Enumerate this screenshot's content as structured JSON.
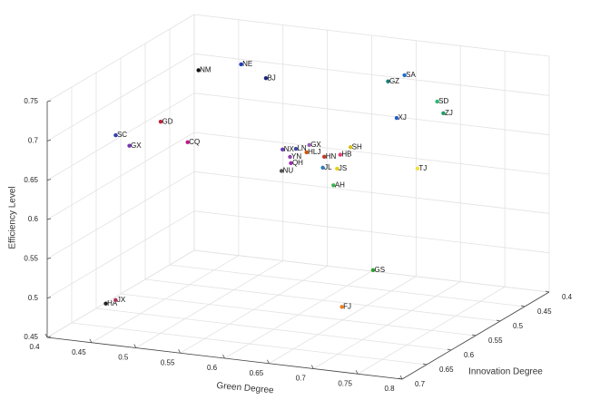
{
  "chart_data": {
    "type": "scatter3d",
    "xlabel": "Green Degree",
    "ylabel": "Innovation Degree",
    "zlabel": "Efficiency Level",
    "xlim": [
      0.4,
      0.8
    ],
    "xticks": [
      0.4,
      0.45,
      0.5,
      0.55,
      0.6,
      0.65,
      0.7,
      0.75,
      0.8
    ],
    "ylim": [
      0.4,
      0.7
    ],
    "yticks": [
      0.4,
      0.45,
      0.5,
      0.55,
      0.6,
      0.65,
      0.7
    ],
    "zlim": [
      0.45,
      0.75
    ],
    "zticks": [
      0.45,
      0.5,
      0.55,
      0.6,
      0.65,
      0.7,
      0.75
    ],
    "grid": true,
    "labels": [
      "NM",
      "NE",
      "BJ",
      "SA",
      "GZ",
      "SD",
      "ZJ",
      "XJ",
      "SC",
      "GD",
      "GX",
      "CQ",
      "NX",
      "LN",
      "GX",
      "HLJ",
      "YN",
      "HN",
      "QH",
      "HB",
      "SH",
      "NU",
      "JL",
      "JS",
      "AH",
      "TJ",
      "GS",
      "FJ",
      "HA",
      "JX"
    ],
    "x": [
      0.46,
      0.497,
      0.536,
      0.648,
      0.646,
      0.718,
      0.736,
      0.711,
      0.433,
      0.445,
      0.465,
      0.503,
      0.61,
      0.614,
      0.618,
      0.637,
      0.635,
      0.657,
      0.647,
      0.675,
      0.659,
      0.653,
      0.683,
      0.688,
      0.706,
      0.762,
      0.712,
      0.721,
      0.455,
      0.455
    ],
    "y": [
      0.5,
      0.48,
      0.5,
      0.42,
      0.45,
      0.48,
      0.5,
      0.55,
      0.62,
      0.55,
      0.65,
      0.6,
      0.6,
      0.58,
      0.56,
      0.6,
      0.63,
      0.6,
      0.65,
      0.6,
      0.55,
      0.68,
      0.65,
      0.63,
      0.67,
      0.6,
      0.6,
      0.68,
      0.68,
      0.66
    ],
    "z": [
      0.724,
      0.729,
      0.724,
      0.713,
      0.716,
      0.711,
      0.706,
      0.715,
      0.682,
      0.675,
      0.684,
      0.675,
      0.68,
      0.674,
      0.672,
      0.68,
      0.685,
      0.677,
      0.686,
      0.682,
      0.671,
      0.688,
      0.685,
      0.677,
      0.673,
      0.676,
      0.54,
      0.524,
      0.493,
      0.49
    ],
    "colors": [
      "#111111",
      "#1f3fbf",
      "#1a237e",
      "#1e6fd0",
      "#1b7a7a",
      "#2bb673",
      "#1d9f60",
      "#2a5cc8",
      "#2d3fb0",
      "#c0203a",
      "#7a35b8",
      "#c2188c",
      "#6a3fb0",
      "#3a4aa0",
      "#9b59b6",
      "#d35400",
      "#8e44ad",
      "#c0392b",
      "#9b30b0",
      "#e0407a",
      "#d4c01a",
      "#555555",
      "#2e7dba",
      "#e6d21a",
      "#3ab54a",
      "#f0e040",
      "#2aa02a",
      "#f08020",
      "#222222",
      "#b03060"
    ]
  }
}
